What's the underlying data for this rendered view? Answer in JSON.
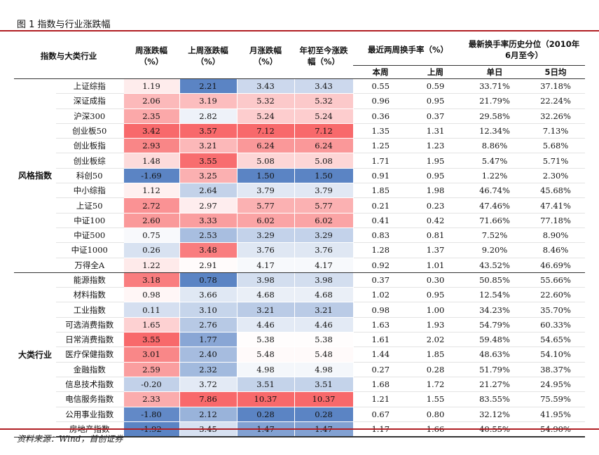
{
  "figure_title": "图 1 指数与行业涨跌幅",
  "source": "资料来源：Wind，首创证券",
  "headers": {
    "col_name": "指数与大类行业",
    "week": "周涨跌幅（%）",
    "last_week": "上周涨跌幅（%）",
    "month": "月涨跌幅（%）",
    "ytd": "年初至今涨跌幅（%）",
    "turnover": "最近两周换手率（%）",
    "turnover_this": "本周",
    "turnover_last": "上周",
    "hist": "最新换手率历史分位（2010年6月至今）",
    "hist_day": "单日",
    "hist_5d": "5日均"
  },
  "groups": [
    {
      "name": "风格指数",
      "rows": [
        {
          "name": "上证综指",
          "week": "1.19",
          "last_week": "2.21",
          "month": "3.43",
          "ytd": "3.43",
          "t_this": "0.55",
          "t_last": "0.59",
          "h_day": "33.71%",
          "h_5d": "37.18%"
        },
        {
          "name": "深证成指",
          "week": "2.06",
          "last_week": "3.19",
          "month": "5.32",
          "ytd": "5.32",
          "t_this": "0.96",
          "t_last": "0.95",
          "h_day": "21.79%",
          "h_5d": "22.24%"
        },
        {
          "name": "沪深300",
          "week": "2.35",
          "last_week": "2.82",
          "month": "5.24",
          "ytd": "5.24",
          "t_this": "0.36",
          "t_last": "0.37",
          "h_day": "29.58%",
          "h_5d": "32.26%"
        },
        {
          "name": "创业板50",
          "week": "3.42",
          "last_week": "3.57",
          "month": "7.12",
          "ytd": "7.12",
          "t_this": "1.35",
          "t_last": "1.31",
          "h_day": "12.34%",
          "h_5d": "7.13%"
        },
        {
          "name": "创业板指",
          "week": "2.93",
          "last_week": "3.21",
          "month": "6.24",
          "ytd": "6.24",
          "t_this": "1.25",
          "t_last": "1.23",
          "h_day": "8.86%",
          "h_5d": "5.68%"
        },
        {
          "name": "创业板综",
          "week": "1.48",
          "last_week": "3.55",
          "month": "5.08",
          "ytd": "5.08",
          "t_this": "1.71",
          "t_last": "1.95",
          "h_day": "5.47%",
          "h_5d": "5.71%"
        },
        {
          "name": "科创50",
          "week": "-1.69",
          "last_week": "3.25",
          "month": "1.50",
          "ytd": "1.50",
          "t_this": "0.91",
          "t_last": "0.95",
          "h_day": "1.22%",
          "h_5d": "2.30%"
        },
        {
          "name": "中小综指",
          "week": "1.12",
          "last_week": "2.64",
          "month": "3.79",
          "ytd": "3.79",
          "t_this": "1.85",
          "t_last": "1.98",
          "h_day": "46.74%",
          "h_5d": "45.68%"
        },
        {
          "name": "上证50",
          "week": "2.72",
          "last_week": "2.97",
          "month": "5.77",
          "ytd": "5.77",
          "t_this": "0.21",
          "t_last": "0.23",
          "h_day": "47.46%",
          "h_5d": "47.41%"
        },
        {
          "name": "中证100",
          "week": "2.60",
          "last_week": "3.33",
          "month": "6.02",
          "ytd": "6.02",
          "t_this": "0.41",
          "t_last": "0.42",
          "h_day": "71.66%",
          "h_5d": "77.18%"
        },
        {
          "name": "中证500",
          "week": "0.75",
          "last_week": "2.53",
          "month": "3.29",
          "ytd": "3.29",
          "t_this": "0.83",
          "t_last": "0.81",
          "h_day": "7.52%",
          "h_5d": "8.90%"
        },
        {
          "name": "中证1000",
          "week": "0.26",
          "last_week": "3.48",
          "month": "3.76",
          "ytd": "3.76",
          "t_this": "1.28",
          "t_last": "1.37",
          "h_day": "9.20%",
          "h_5d": "8.46%"
        },
        {
          "name": "万得全A",
          "week": "1.22",
          "last_week": "2.91",
          "month": "4.17",
          "ytd": "4.17",
          "t_this": "0.92",
          "t_last": "1.01",
          "h_day": "43.52%",
          "h_5d": "46.69%"
        }
      ]
    },
    {
      "name": "大类行业",
      "rows": [
        {
          "name": "能源指数",
          "week": "3.18",
          "last_week": "0.78",
          "month": "3.98",
          "ytd": "3.98",
          "t_this": "0.37",
          "t_last": "0.30",
          "h_day": "50.85%",
          "h_5d": "55.66%"
        },
        {
          "name": "材料指数",
          "week": "0.98",
          "last_week": "3.66",
          "month": "4.68",
          "ytd": "4.68",
          "t_this": "1.02",
          "t_last": "0.95",
          "h_day": "12.54%",
          "h_5d": "22.60%"
        },
        {
          "name": "工业指数",
          "week": "0.11",
          "last_week": "3.10",
          "month": "3.21",
          "ytd": "3.21",
          "t_this": "0.98",
          "t_last": "1.00",
          "h_day": "34.23%",
          "h_5d": "35.70%"
        },
        {
          "name": "可选消费指数",
          "week": "1.65",
          "last_week": "2.76",
          "month": "4.46",
          "ytd": "4.46",
          "t_this": "1.63",
          "t_last": "1.93",
          "h_day": "54.79%",
          "h_5d": "60.33%"
        },
        {
          "name": "日常消费指数",
          "week": "3.55",
          "last_week": "1.77",
          "month": "5.38",
          "ytd": "5.38",
          "t_this": "1.61",
          "t_last": "2.02",
          "h_day": "59.48%",
          "h_5d": "54.65%"
        },
        {
          "name": "医疗保健指数",
          "week": "3.01",
          "last_week": "2.40",
          "month": "5.48",
          "ytd": "5.48",
          "t_this": "1.44",
          "t_last": "1.85",
          "h_day": "48.63%",
          "h_5d": "54.10%"
        },
        {
          "name": "金融指数",
          "week": "2.59",
          "last_week": "2.32",
          "month": "4.98",
          "ytd": "4.98",
          "t_this": "0.27",
          "t_last": "0.28",
          "h_day": "51.79%",
          "h_5d": "38.37%"
        },
        {
          "name": "信息技术指数",
          "week": "-0.20",
          "last_week": "3.72",
          "month": "3.51",
          "ytd": "3.51",
          "t_this": "1.68",
          "t_last": "1.72",
          "h_day": "21.27%",
          "h_5d": "24.95%"
        },
        {
          "name": "电信服务指数",
          "week": "2.33",
          "last_week": "7.86",
          "month": "10.37",
          "ytd": "10.37",
          "t_this": "1.21",
          "t_last": "1.55",
          "h_day": "83.55%",
          "h_5d": "75.59%"
        },
        {
          "name": "公用事业指数",
          "week": "-1.80",
          "last_week": "2.12",
          "month": "0.28",
          "ytd": "0.28",
          "t_this": "0.67",
          "t_last": "0.80",
          "h_day": "32.12%",
          "h_5d": "41.95%"
        },
        {
          "name": "房地产指数",
          "week": "-1.92",
          "last_week": "3.45",
          "month": "1.47",
          "ytd": "1.47",
          "t_this": "1.17",
          "t_last": "1.66",
          "h_day": "40.55%",
          "h_5d": "54.90%"
        }
      ]
    }
  ],
  "heatmap_colors": {
    "low": "#5b84c4",
    "mid": "#ffffff",
    "high": "#f8696b"
  }
}
